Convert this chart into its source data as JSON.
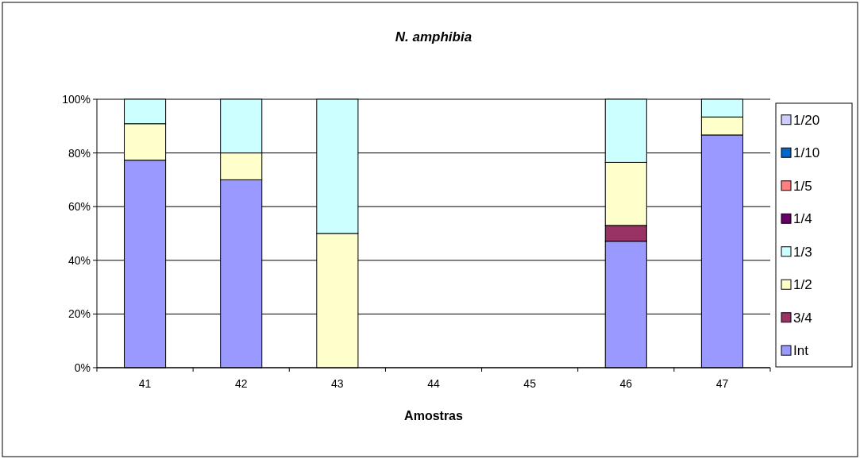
{
  "chart_data": {
    "type": "bar",
    "stacked": true,
    "title": "N. amphibia",
    "xlabel": "Amostras",
    "categories": [
      "41",
      "42",
      "43",
      "44",
      "45",
      "46",
      "47"
    ],
    "series": [
      {
        "name": "Int",
        "color": "#9999ff",
        "values": [
          77.3,
          70,
          0,
          0,
          0,
          47.1,
          86.7
        ]
      },
      {
        "name": "3/4",
        "color": "#993366",
        "values": [
          0,
          0,
          0,
          0,
          0,
          5.9,
          0
        ]
      },
      {
        "name": "1/2",
        "color": "#ffffcc",
        "values": [
          13.6,
          10,
          50,
          0,
          0,
          23.5,
          6.7
        ]
      },
      {
        "name": "1/3",
        "color": "#ccffff",
        "values": [
          9.1,
          20,
          50,
          0,
          0,
          23.5,
          6.6
        ]
      },
      {
        "name": "1/4",
        "color": "#660066",
        "values": [
          0,
          0,
          0,
          0,
          0,
          0,
          0
        ]
      },
      {
        "name": "1/5",
        "color": "#ff8080",
        "values": [
          0,
          0,
          0,
          0,
          0,
          0,
          0
        ]
      },
      {
        "name": "1/10",
        "color": "#0066cc",
        "values": [
          0,
          0,
          0,
          0,
          0,
          0,
          0
        ]
      },
      {
        "name": "1/20",
        "color": "#ccccff",
        "values": [
          0,
          0,
          0,
          0,
          0,
          0,
          0
        ]
      }
    ],
    "ylim": [
      0,
      100
    ],
    "yticks": [
      {
        "value": 0,
        "label": "0%"
      },
      {
        "value": 20,
        "label": "20%"
      },
      {
        "value": 40,
        "label": "40%"
      },
      {
        "value": 60,
        "label": "60%"
      },
      {
        "value": 80,
        "label": "80%"
      },
      {
        "value": 100,
        "label": "100%"
      }
    ],
    "grid": "y",
    "legend": "right"
  }
}
